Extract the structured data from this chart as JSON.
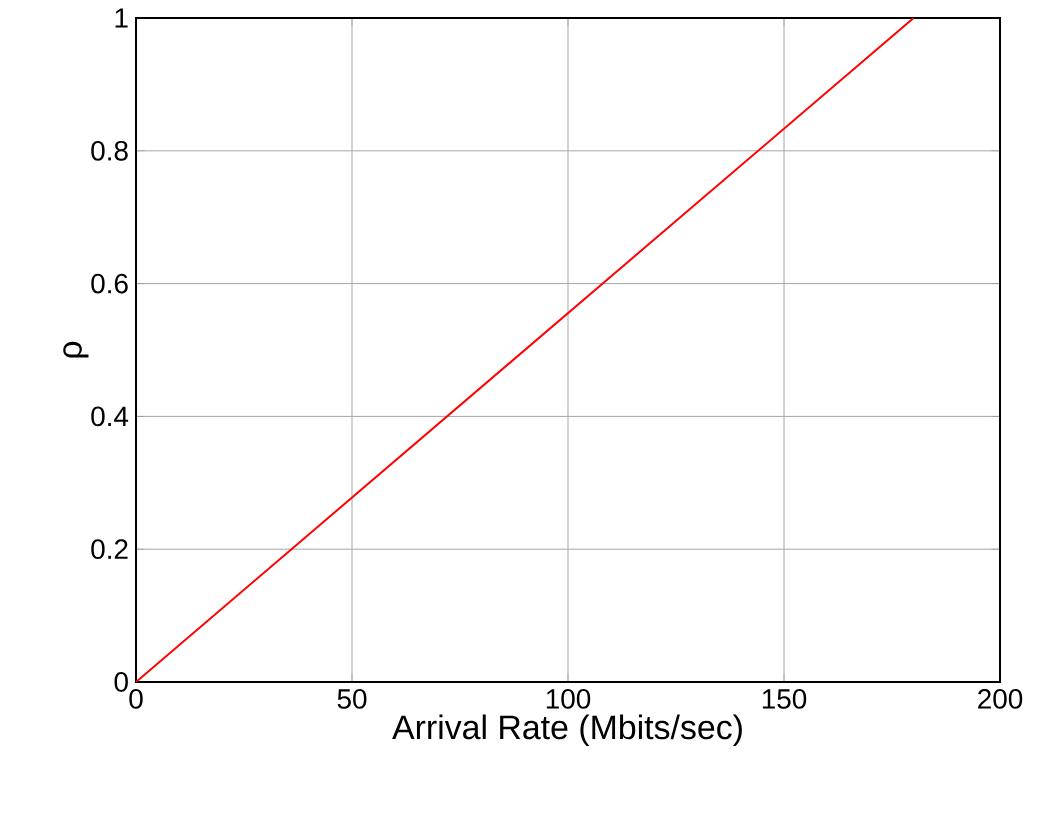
{
  "chart_data": {
    "type": "line",
    "xlabel": "Arrival Rate (Mbits/sec)",
    "ylabel": "ρ",
    "x": [
      0,
      180
    ],
    "series": [
      {
        "color": "#ff0000",
        "values": [
          0,
          1
        ]
      }
    ],
    "xlim": [
      0,
      200
    ],
    "ylim": [
      0,
      1
    ],
    "xticks": [
      0,
      50,
      100,
      150,
      200
    ],
    "yticks": [
      0,
      0.2,
      0.4,
      0.6,
      0.8,
      1
    ],
    "grid": true,
    "marker": "none",
    "line_style": "solid"
  }
}
